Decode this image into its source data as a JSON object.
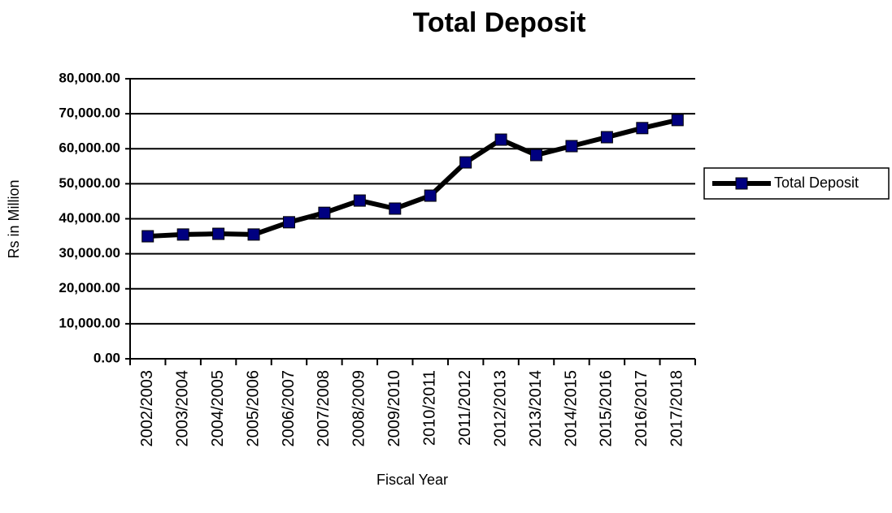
{
  "chart_data": {
    "type": "line",
    "title": "Total Deposit",
    "xlabel": "Fiscal Year",
    "ylabel": "Rs in Million",
    "categories": [
      "2002/2003",
      "2003/2004",
      "2004/2005",
      "2005/2006",
      "2006/2007",
      "2007/2008",
      "2008/2009",
      "2009/2010",
      "2010/2011",
      "2011/2012",
      "2012/2013",
      "2013/2014",
      "2014/2015",
      "2015/2016",
      "2016/2017",
      "2017/2018"
    ],
    "series": [
      {
        "name": "Total Deposit",
        "color": "#000080",
        "line_color": "#000000",
        "values": [
          35000,
          35500,
          35700,
          35500,
          39000,
          41700,
          45200,
          42900,
          46600,
          56100,
          62600,
          58200,
          60750,
          63300,
          65900,
          68200
        ]
      }
    ],
    "ylim": [
      0,
      80000
    ],
    "yticks": [
      {
        "value": 0,
        "label": "0.00"
      },
      {
        "value": 10000,
        "label": "10,000.00"
      },
      {
        "value": 20000,
        "label": "20,000.00"
      },
      {
        "value": 30000,
        "label": "30,000.00"
      },
      {
        "value": 40000,
        "label": "40,000.00"
      },
      {
        "value": 50000,
        "label": "50,000.00"
      },
      {
        "value": 60000,
        "label": "60,000.00"
      },
      {
        "value": 70000,
        "label": "70,000.00"
      },
      {
        "value": 80000,
        "label": "80,000.00"
      }
    ],
    "grid": true,
    "legend": "right"
  }
}
